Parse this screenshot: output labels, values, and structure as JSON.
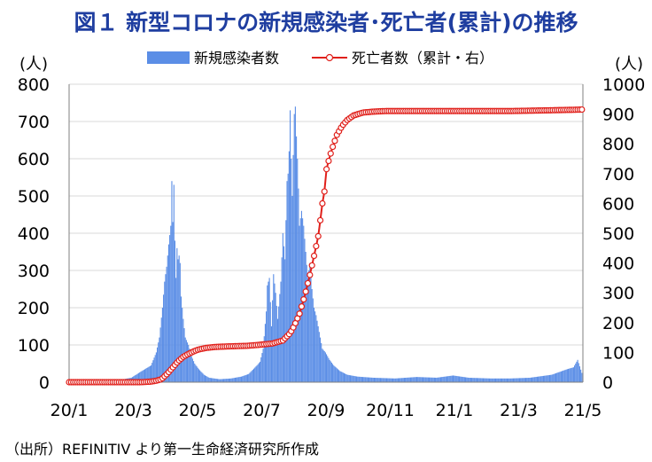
{
  "title": "図１ 新型コロナの新規感染者･死亡者(累計)の推移",
  "source": "（出所）REFINITIV より第一生命経済研究所作成",
  "chart_data": {
    "type": "bar+line",
    "x_range": [
      "2020-01-01",
      "2021-05-10"
    ],
    "x_tick_labels": [
      "20/1",
      "20/3",
      "20/5",
      "20/7",
      "20/9",
      "20/11",
      "21/1",
      "21/3",
      "21/5"
    ],
    "left_axis": {
      "unit_label": "(人)",
      "ylim": [
        0,
        800
      ],
      "ticks": [
        0,
        100,
        200,
        300,
        400,
        500,
        600,
        700,
        800
      ]
    },
    "right_axis": {
      "unit_label": "(人)",
      "ylim": [
        0,
        1000
      ],
      "ticks": [
        0,
        100,
        200,
        300,
        400,
        500,
        600,
        700,
        800,
        900,
        1000
      ]
    },
    "grid": "horizontal",
    "legend_position": "top",
    "series": [
      {
        "name": "新規感染者数",
        "kind": "bar",
        "axis": "left",
        "color": "#5b8ee6",
        "points": [
          [
            "2020-01-15",
            0
          ],
          [
            "2020-02-01",
            2
          ],
          [
            "2020-02-15",
            4
          ],
          [
            "2020-03-01",
            12
          ],
          [
            "2020-03-10",
            28
          ],
          [
            "2020-03-20",
            45
          ],
          [
            "2020-03-25",
            80
          ],
          [
            "2020-03-28",
            120
          ],
          [
            "2020-03-31",
            200
          ],
          [
            "2020-04-02",
            270
          ],
          [
            "2020-04-04",
            310
          ],
          [
            "2020-04-06",
            370
          ],
          [
            "2020-04-08",
            420
          ],
          [
            "2020-04-09",
            540
          ],
          [
            "2020-04-10",
            430
          ],
          [
            "2020-04-11",
            530
          ],
          [
            "2020-04-12",
            380
          ],
          [
            "2020-04-13",
            280
          ],
          [
            "2020-04-14",
            360
          ],
          [
            "2020-04-15",
            330
          ],
          [
            "2020-04-16",
            340
          ],
          [
            "2020-04-17",
            320
          ],
          [
            "2020-04-18",
            230
          ],
          [
            "2020-04-20",
            170
          ],
          [
            "2020-04-22",
            120
          ],
          [
            "2020-04-25",
            100
          ],
          [
            "2020-04-28",
            70
          ],
          [
            "2020-05-01",
            50
          ],
          [
            "2020-05-05",
            35
          ],
          [
            "2020-05-10",
            20
          ],
          [
            "2020-05-15",
            12
          ],
          [
            "2020-05-25",
            8
          ],
          [
            "2020-06-05",
            10
          ],
          [
            "2020-06-15",
            15
          ],
          [
            "2020-06-22",
            22
          ],
          [
            "2020-06-30",
            45
          ],
          [
            "2020-07-03",
            55
          ],
          [
            "2020-07-06",
            90
          ],
          [
            "2020-07-09",
            190
          ],
          [
            "2020-07-10",
            260
          ],
          [
            "2020-07-12",
            280
          ],
          [
            "2020-07-14",
            150
          ],
          [
            "2020-07-16",
            290
          ],
          [
            "2020-07-18",
            240
          ],
          [
            "2020-07-20",
            170
          ],
          [
            "2020-07-23",
            270
          ],
          [
            "2020-07-25",
            400
          ],
          [
            "2020-07-27",
            330
          ],
          [
            "2020-07-29",
            540
          ],
          [
            "2020-07-30",
            560
          ],
          [
            "2020-07-31",
            620
          ],
          [
            "2020-08-01",
            730
          ],
          [
            "2020-08-02",
            600
          ],
          [
            "2020-08-03",
            500
          ],
          [
            "2020-08-05",
            720
          ],
          [
            "2020-08-06",
            740
          ],
          [
            "2020-08-07",
            660
          ],
          [
            "2020-08-08",
            600
          ],
          [
            "2020-08-09",
            520
          ],
          [
            "2020-08-10",
            420
          ],
          [
            "2020-08-12",
            460
          ],
          [
            "2020-08-14",
            420
          ],
          [
            "2020-08-16",
            350
          ],
          [
            "2020-08-18",
            280
          ],
          [
            "2020-08-20",
            320
          ],
          [
            "2020-08-22",
            250
          ],
          [
            "2020-08-24",
            200
          ],
          [
            "2020-08-26",
            180
          ],
          [
            "2020-08-28",
            150
          ],
          [
            "2020-08-30",
            120
          ],
          [
            "2020-09-01",
            90
          ],
          [
            "2020-09-04",
            80
          ],
          [
            "2020-09-08",
            60
          ],
          [
            "2020-09-12",
            45
          ],
          [
            "2020-09-18",
            30
          ],
          [
            "2020-09-25",
            20
          ],
          [
            "2020-10-05",
            15
          ],
          [
            "2020-10-20",
            12
          ],
          [
            "2020-11-10",
            10
          ],
          [
            "2020-12-01",
            14
          ],
          [
            "2020-12-20",
            12
          ],
          [
            "2021-01-05",
            18
          ],
          [
            "2021-01-20",
            12
          ],
          [
            "2021-02-10",
            10
          ],
          [
            "2021-03-01",
            10
          ],
          [
            "2021-03-20",
            12
          ],
          [
            "2021-04-10",
            20
          ],
          [
            "2021-04-25",
            35
          ],
          [
            "2021-05-01",
            40
          ],
          [
            "2021-05-05",
            60
          ],
          [
            "2021-05-09",
            25
          ]
        ]
      },
      {
        "name": "死亡者数（累計・右）",
        "kind": "line",
        "axis": "right",
        "color": "#e0201b",
        "points": [
          [
            "2020-01-01",
            0
          ],
          [
            "2020-03-10",
            0
          ],
          [
            "2020-03-20",
            2
          ],
          [
            "2020-03-25",
            5
          ],
          [
            "2020-03-30",
            10
          ],
          [
            "2020-04-05",
            30
          ],
          [
            "2020-04-10",
            50
          ],
          [
            "2020-04-15",
            70
          ],
          [
            "2020-04-20",
            85
          ],
          [
            "2020-04-25",
            95
          ],
          [
            "2020-05-01",
            105
          ],
          [
            "2020-05-05",
            110
          ],
          [
            "2020-05-12",
            115
          ],
          [
            "2020-05-20",
            118
          ],
          [
            "2020-06-01",
            120
          ],
          [
            "2020-06-20",
            122
          ],
          [
            "2020-07-01",
            125
          ],
          [
            "2020-07-15",
            130
          ],
          [
            "2020-07-25",
            140
          ],
          [
            "2020-08-01",
            165
          ],
          [
            "2020-08-05",
            190
          ],
          [
            "2020-08-10",
            230
          ],
          [
            "2020-08-15",
            290
          ],
          [
            "2020-08-20",
            360
          ],
          [
            "2020-08-25",
            440
          ],
          [
            "2020-08-28",
            490
          ],
          [
            "2020-08-31",
            570
          ],
          [
            "2020-09-01",
            600
          ],
          [
            "2020-09-03",
            640
          ],
          [
            "2020-09-04",
            700
          ],
          [
            "2020-09-06",
            730
          ],
          [
            "2020-09-10",
            780
          ],
          [
            "2020-09-15",
            830
          ],
          [
            "2020-09-20",
            860
          ],
          [
            "2020-09-25",
            880
          ],
          [
            "2020-10-01",
            895
          ],
          [
            "2020-10-10",
            905
          ],
          [
            "2020-10-20",
            908
          ],
          [
            "2020-11-01",
            910
          ],
          [
            "2021-01-01",
            910
          ],
          [
            "2021-03-01",
            910
          ],
          [
            "2021-04-01",
            912
          ],
          [
            "2021-05-10",
            915
          ]
        ]
      }
    ]
  }
}
